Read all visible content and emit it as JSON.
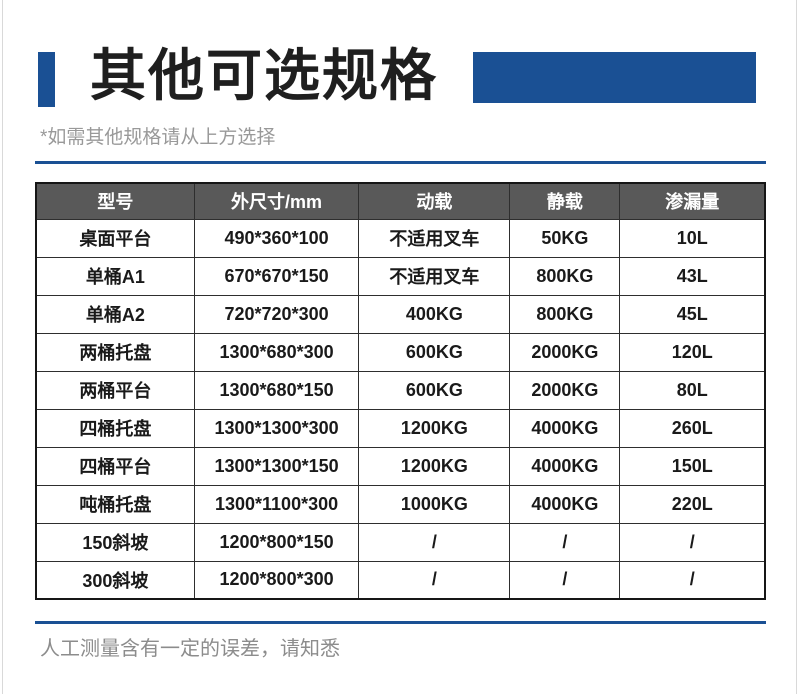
{
  "header": {
    "title": "其他可选规格",
    "subtitle": "*如需其他规格请从上方选择"
  },
  "colors": {
    "accent_blue": "#1a5094",
    "header_gray": "#595959",
    "text_dark": "#1a1a1a",
    "muted_gray": "#999999",
    "footer_gray": "#8c8c8c",
    "edge_gray": "#d9d9d9"
  },
  "table": {
    "headers": [
      "型号",
      "外尺寸/mm",
      "动载",
      "静载",
      "渗漏量"
    ],
    "rows": [
      [
        "桌面平台",
        "490*360*100",
        "不适用叉车",
        "50KG",
        "10L"
      ],
      [
        "单桶A1",
        "670*670*150",
        "不适用叉车",
        "800KG",
        "43L"
      ],
      [
        "单桶A2",
        "720*720*300",
        "400KG",
        "800KG",
        "45L"
      ],
      [
        "两桶托盘",
        "1300*680*300",
        "600KG",
        "2000KG",
        "120L"
      ],
      [
        "两桶平台",
        "1300*680*150",
        "600KG",
        "2000KG",
        "80L"
      ],
      [
        "四桶托盘",
        "1300*1300*300",
        "1200KG",
        "4000KG",
        "260L"
      ],
      [
        "四桶平台",
        "1300*1300*150",
        "1200KG",
        "4000KG",
        "150L"
      ],
      [
        "吨桶托盘",
        "1300*1100*300",
        "1000KG",
        "4000KG",
        "220L"
      ],
      [
        "150斜坡",
        "1200*800*150",
        "/",
        "/",
        "/"
      ],
      [
        "300斜坡",
        "1200*800*300",
        "/",
        "/",
        "/"
      ]
    ]
  },
  "footer": {
    "note": "人工测量含有一定的误差，请知悉"
  }
}
